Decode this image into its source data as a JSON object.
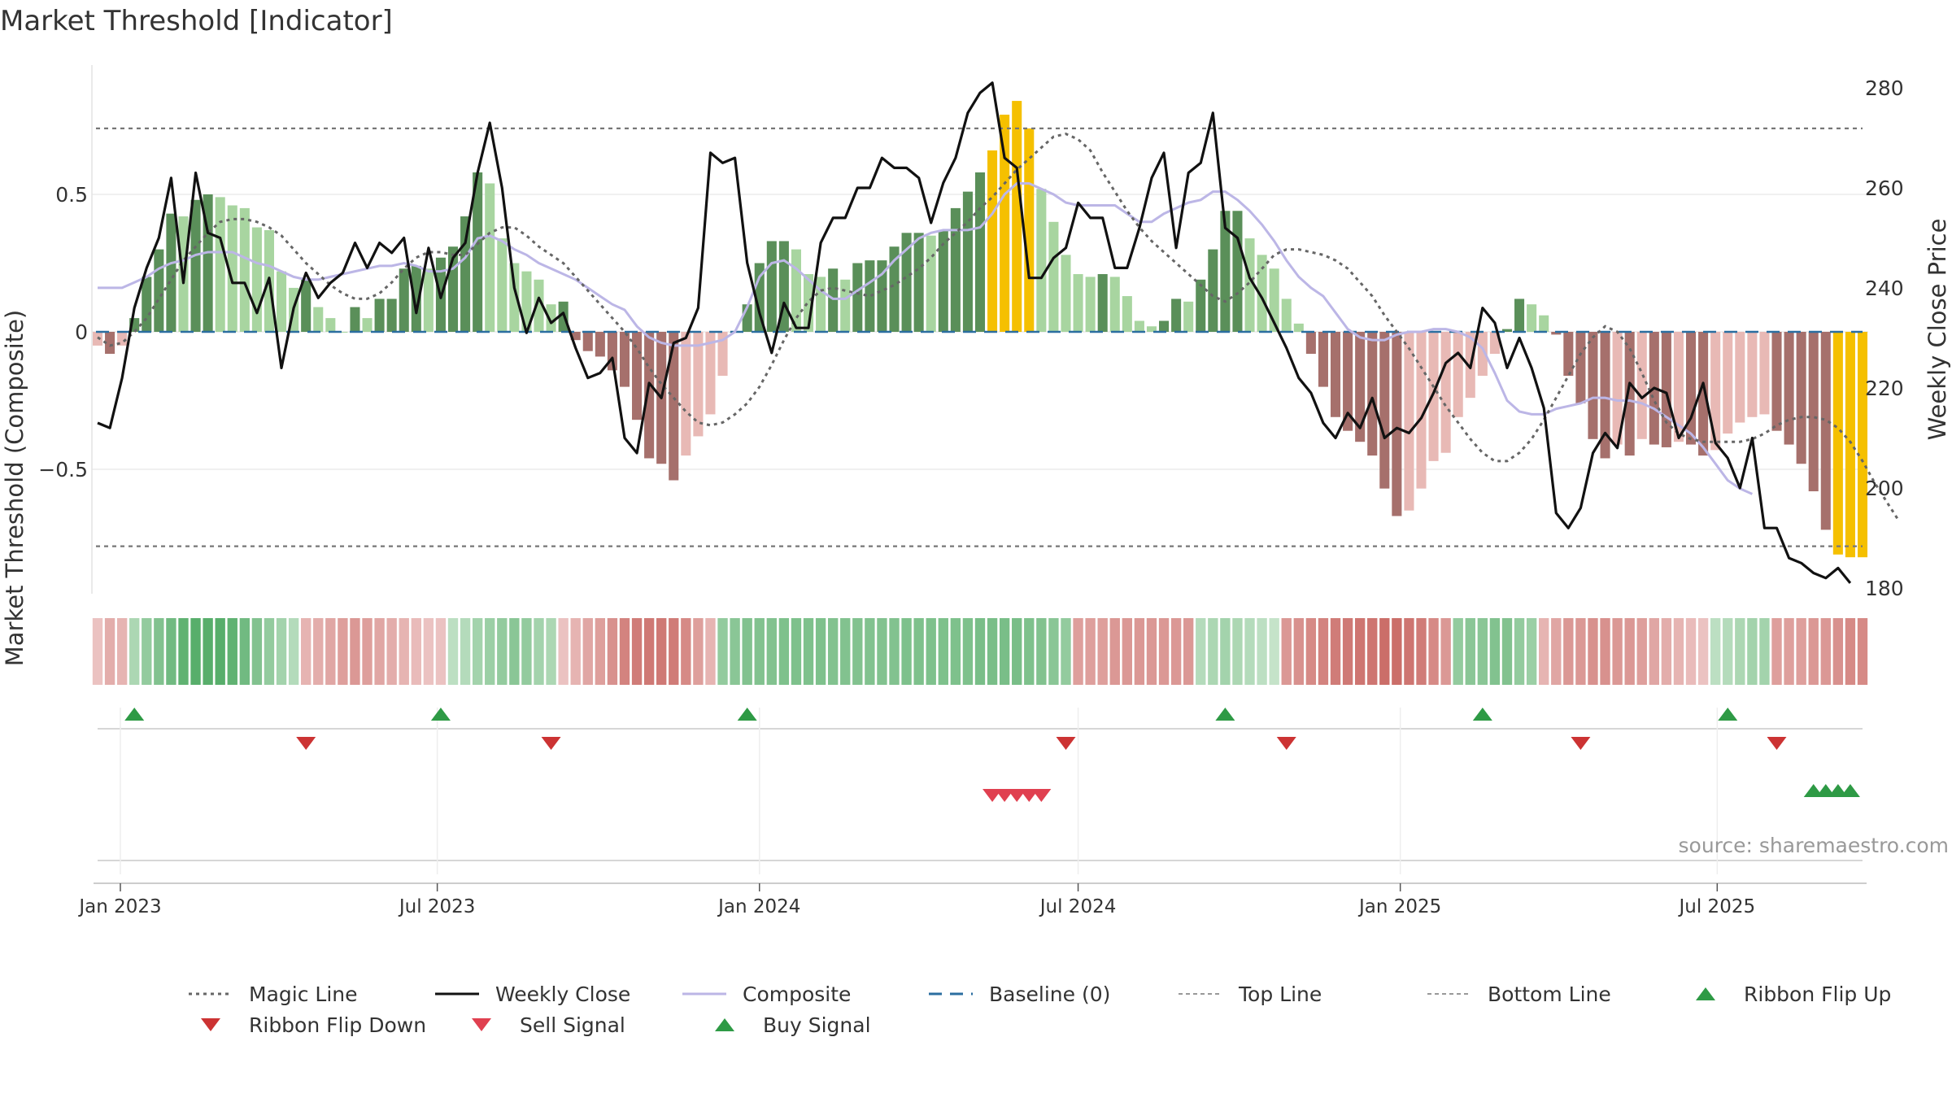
{
  "title": "Market Threshold [Indicator]",
  "source": "source: sharemaestro.com",
  "colors": {
    "bar_pos_strong": "#5a8f59",
    "bar_pos_weak": "#a8d5a0",
    "bar_neg_strong": "#a6706c",
    "bar_neg_weak": "#e8b9b5",
    "highlight": "#f5c000",
    "close": "#111111",
    "composite": "#bcb6e6",
    "magic": "#666666",
    "baseline": "#2b6ea0",
    "threshold": "#777777",
    "buy": "#2e9a45",
    "sell": "#d93a3a",
    "flip_up": "#2e9a45",
    "flip_down": "#cc3333"
  },
  "chart_data": {
    "type": "bar",
    "title": "Market Threshold [Indicator]",
    "ylabel_left": "Market Threshold (Composite)",
    "ylabel_right": "Weekly Close Price",
    "ylim_left": [
      -0.95,
      0.95
    ],
    "ylim_right": [
      180,
      280
    ],
    "yticks_left": [
      {
        "value": 0.5,
        "label": "0.5"
      },
      {
        "value": 0,
        "label": "0"
      },
      {
        "value": -0.5,
        "label": "−0.5"
      }
    ],
    "yticks_right": [
      280,
      260,
      240,
      220,
      200,
      180
    ],
    "top_line": 0.74,
    "bottom_line": -0.78,
    "x_start": "2022-12-19",
    "x_step_days": 7,
    "xticks": [
      {
        "date": "2023-01-01",
        "label": "Jan 2023"
      },
      {
        "date": "2023-07-01",
        "label": "Jul 2023"
      },
      {
        "date": "2024-01-01",
        "label": "Jan 2024"
      },
      {
        "date": "2024-07-01",
        "label": "Jul 2024"
      },
      {
        "date": "2025-01-01",
        "label": "Jan 2025"
      },
      {
        "date": "2025-07-01",
        "label": "Jul 2025"
      }
    ],
    "series": [
      {
        "name": "Magic Line",
        "values": [
          -0.02,
          -0.05,
          -0.04,
          0.0,
          0.05,
          0.12,
          0.19,
          0.26,
          0.31,
          0.36,
          0.4,
          0.41,
          0.41,
          0.4,
          0.38,
          0.35,
          0.3,
          0.25,
          0.21,
          0.17,
          0.14,
          0.12,
          0.12,
          0.14,
          0.18,
          0.23,
          0.27,
          0.29,
          0.29,
          0.28,
          0.28,
          0.32,
          0.36,
          0.38,
          0.38,
          0.35,
          0.31,
          0.28,
          0.25,
          0.2,
          0.15,
          0.1,
          0.05,
          0.0,
          -0.06,
          -0.13,
          -0.19,
          -0.24,
          -0.29,
          -0.33,
          -0.34,
          -0.33,
          -0.3,
          -0.26,
          -0.2,
          -0.12,
          -0.03,
          0.05,
          0.11,
          0.15,
          0.16,
          0.15,
          0.14,
          0.13,
          0.15,
          0.17,
          0.2,
          0.23,
          0.27,
          0.32,
          0.36,
          0.4,
          0.45,
          0.49,
          0.54,
          0.59,
          0.63,
          0.67,
          0.71,
          0.72,
          0.7,
          0.66,
          0.58,
          0.51,
          0.44,
          0.38,
          0.33,
          0.29,
          0.25,
          0.21,
          0.17,
          0.13,
          0.11,
          0.14,
          0.18,
          0.23,
          0.28,
          0.3,
          0.3,
          0.29,
          0.28,
          0.26,
          0.23,
          0.18,
          0.13,
          0.06,
          0.0,
          -0.06,
          -0.13,
          -0.2,
          -0.27,
          -0.33,
          -0.39,
          -0.44,
          -0.47,
          -0.47,
          -0.44,
          -0.39,
          -0.32,
          -0.24,
          -0.16,
          -0.08,
          -0.02,
          0.02,
          0.0,
          -0.06,
          -0.15,
          -0.25,
          -0.33,
          -0.37,
          -0.39,
          -0.4,
          -0.4,
          -0.4,
          -0.4,
          -0.39,
          -0.37,
          -0.34,
          -0.32,
          -0.31,
          -0.31,
          -0.32,
          -0.35,
          -0.4,
          -0.47,
          -0.55,
          -0.62,
          -0.69
        ]
      },
      {
        "name": "Weekly Close",
        "values": [
          213,
          212,
          222,
          236,
          244,
          250,
          262,
          241,
          263,
          251,
          250,
          241,
          241,
          235,
          242,
          224,
          236,
          243,
          238,
          241,
          243,
          249,
          244,
          249,
          247,
          250,
          235,
          248,
          238,
          246,
          249,
          263,
          273,
          260,
          240,
          231,
          238,
          233,
          235,
          228,
          222,
          223,
          226,
          210,
          207,
          221,
          218,
          229,
          230,
          236,
          267,
          265,
          266,
          245,
          235,
          227,
          237,
          232,
          232,
          249,
          254,
          254,
          260,
          260,
          266,
          264,
          264,
          262,
          253,
          261,
          266,
          275,
          279,
          281,
          266,
          264,
          242,
          242,
          246,
          248,
          257,
          254,
          254,
          244,
          244,
          252,
          262,
          267,
          248,
          263,
          265,
          275,
          252,
          250,
          242,
          238,
          233,
          228,
          222,
          219,
          213,
          210,
          215,
          212,
          218,
          210,
          212,
          211,
          214,
          219,
          225,
          227,
          224,
          236,
          233,
          224,
          230,
          224,
          216,
          195,
          192,
          196,
          207,
          211,
          208,
          221,
          218,
          220,
          219,
          210,
          214,
          221,
          209,
          206,
          200,
          210,
          192,
          192,
          186,
          185,
          183,
          182,
          184,
          181
        ]
      },
      {
        "name": "Composite",
        "values": [
          0.16,
          0.16,
          0.16,
          0.18,
          0.2,
          0.23,
          0.25,
          0.26,
          0.28,
          0.29,
          0.29,
          0.29,
          0.27,
          0.25,
          0.24,
          0.22,
          0.2,
          0.19,
          0.19,
          0.2,
          0.21,
          0.22,
          0.23,
          0.24,
          0.24,
          0.25,
          0.24,
          0.22,
          0.22,
          0.23,
          0.27,
          0.34,
          0.35,
          0.33,
          0.3,
          0.28,
          0.25,
          0.23,
          0.21,
          0.19,
          0.16,
          0.13,
          0.1,
          0.08,
          0.02,
          -0.02,
          -0.04,
          -0.05,
          -0.05,
          -0.05,
          -0.04,
          -0.03,
          0.0,
          0.09,
          0.2,
          0.25,
          0.26,
          0.23,
          0.19,
          0.15,
          0.12,
          0.12,
          0.15,
          0.18,
          0.21,
          0.26,
          0.3,
          0.34,
          0.36,
          0.37,
          0.37,
          0.37,
          0.38,
          0.43,
          0.5,
          0.54,
          0.54,
          0.52,
          0.5,
          0.47,
          0.46,
          0.46,
          0.46,
          0.46,
          0.43,
          0.4,
          0.4,
          0.43,
          0.45,
          0.47,
          0.48,
          0.51,
          0.51,
          0.48,
          0.44,
          0.39,
          0.33,
          0.26,
          0.2,
          0.16,
          0.13,
          0.07,
          0.01,
          -0.02,
          -0.03,
          -0.03,
          -0.01,
          0.0,
          0.0,
          0.01,
          0.01,
          0.0,
          -0.02,
          -0.06,
          -0.15,
          -0.25,
          -0.29,
          -0.3,
          -0.3,
          -0.28,
          -0.27,
          -0.26,
          -0.24,
          -0.24,
          -0.25,
          -0.25,
          -0.26,
          -0.28,
          -0.31,
          -0.34,
          -0.37,
          -0.42,
          -0.48,
          -0.54,
          -0.57,
          -0.59
        ]
      },
      {
        "name": "Composite Bars",
        "values": [
          -0.05,
          -0.08,
          -0.05,
          0.05,
          0.2,
          0.3,
          0.43,
          0.42,
          0.48,
          0.5,
          0.49,
          0.46,
          0.45,
          0.38,
          0.37,
          0.22,
          0.16,
          0.19,
          0.09,
          0.05,
          0.0,
          0.09,
          0.05,
          0.12,
          0.12,
          0.23,
          0.24,
          0.23,
          0.27,
          0.31,
          0.42,
          0.58,
          0.54,
          0.34,
          0.25,
          0.22,
          0.19,
          0.1,
          0.11,
          -0.03,
          -0.07,
          -0.09,
          -0.14,
          -0.2,
          -0.32,
          -0.46,
          -0.48,
          -0.54,
          -0.45,
          -0.38,
          -0.3,
          -0.16,
          0.0,
          0.1,
          0.25,
          0.33,
          0.33,
          0.3,
          0.21,
          0.2,
          0.23,
          0.19,
          0.25,
          0.26,
          0.26,
          0.31,
          0.36,
          0.36,
          0.35,
          0.37,
          0.45,
          0.51,
          0.58,
          0.66,
          0.79,
          0.84,
          0.74,
          0.52,
          0.4,
          0.28,
          0.21,
          0.2,
          0.21,
          0.2,
          0.13,
          0.04,
          0.02,
          0.04,
          0.12,
          0.11,
          0.19,
          0.3,
          0.44,
          0.44,
          0.34,
          0.28,
          0.23,
          0.12,
          0.03,
          -0.08,
          -0.2,
          -0.31,
          -0.36,
          -0.4,
          -0.45,
          -0.57,
          -0.67,
          -0.65,
          -0.57,
          -0.47,
          -0.44,
          -0.31,
          -0.24,
          -0.16,
          -0.08,
          0.01,
          0.12,
          0.1,
          0.06,
          -0.01,
          -0.16,
          -0.26,
          -0.39,
          -0.46,
          -0.41,
          -0.45,
          -0.39,
          -0.41,
          -0.42,
          -0.4,
          -0.41,
          -0.45,
          -0.43,
          -0.37,
          -0.33,
          -0.31,
          -0.3,
          -0.36,
          -0.41,
          -0.48,
          -0.58,
          -0.72,
          -0.81,
          -0.82,
          -0.82
        ]
      }
    ],
    "highlighted_bar_ranges": [
      [
        73,
        76
      ],
      [
        142,
        145
      ]
    ],
    "ribbon": [
      -0.2,
      -0.35,
      -0.3,
      0.35,
      0.5,
      0.6,
      0.7,
      0.8,
      0.85,
      0.85,
      0.85,
      0.8,
      0.7,
      0.6,
      0.5,
      0.4,
      0.3,
      -0.3,
      -0.35,
      -0.4,
      -0.45,
      -0.5,
      -0.45,
      -0.4,
      -0.35,
      -0.3,
      -0.25,
      -0.2,
      -0.2,
      0.25,
      0.3,
      0.4,
      0.45,
      0.5,
      0.55,
      0.5,
      0.4,
      0.35,
      -0.2,
      -0.3,
      -0.4,
      -0.45,
      -0.55,
      -0.65,
      -0.7,
      -0.72,
      -0.72,
      -0.7,
      -0.6,
      -0.45,
      -0.3,
      0.5,
      0.55,
      0.6,
      0.6,
      0.6,
      0.62,
      0.62,
      0.62,
      0.62,
      0.6,
      0.6,
      0.6,
      0.6,
      0.6,
      0.6,
      0.62,
      0.62,
      0.62,
      0.62,
      0.62,
      0.62,
      0.65,
      0.65,
      0.65,
      0.65,
      0.62,
      0.6,
      0.55,
      0.5,
      -0.45,
      -0.45,
      -0.45,
      -0.5,
      -0.5,
      -0.5,
      -0.5,
      -0.5,
      -0.5,
      -0.5,
      0.3,
      0.35,
      0.4,
      0.35,
      0.3,
      0.25,
      0.2,
      -0.5,
      -0.55,
      -0.6,
      -0.65,
      -0.7,
      -0.72,
      -0.75,
      -0.75,
      -0.8,
      -0.8,
      -0.75,
      -0.7,
      -0.6,
      -0.5,
      0.5,
      0.55,
      0.55,
      0.6,
      0.6,
      0.5,
      0.45,
      -0.3,
      -0.4,
      -0.5,
      -0.5,
      -0.55,
      -0.55,
      -0.5,
      -0.5,
      -0.45,
      -0.4,
      -0.35,
      -0.3,
      -0.25,
      -0.2,
      0.25,
      0.3,
      0.35,
      0.4,
      0.4,
      -0.45,
      -0.45,
      -0.45,
      -0.5,
      -0.5,
      -0.55,
      -0.6,
      -0.6
    ],
    "ribbon_flip_up": [
      3,
      28,
      53,
      92,
      113,
      133
    ],
    "ribbon_flip_down": [
      17,
      37,
      79,
      97,
      121,
      137
    ],
    "sell_signals": [
      73,
      74,
      75,
      76,
      77
    ],
    "buy_signals": [
      140,
      141,
      142,
      143
    ],
    "legend": {
      "position": "bottom",
      "entries": [
        {
          "label": "Magic Line",
          "style": "dotted",
          "color": "#666666"
        },
        {
          "label": "Weekly Close",
          "style": "solid",
          "color": "#111111"
        },
        {
          "label": "Composite",
          "style": "solid",
          "color": "#bcb6e6"
        },
        {
          "label": "Baseline (0)",
          "style": "dashed",
          "color": "#2b6ea0"
        },
        {
          "label": "Top Line",
          "style": "dashed-thin",
          "color": "#999999"
        },
        {
          "label": "Bottom Line",
          "style": "dashed-thin",
          "color": "#999999"
        },
        {
          "label": "Ribbon Flip Up",
          "style": "triangle-up",
          "color": "#2e9a45"
        },
        {
          "label": "Ribbon Flip Down",
          "style": "triangle-down",
          "color": "#cc3333"
        },
        {
          "label": "Sell Signal",
          "style": "triangle-down",
          "color": "#e04050"
        },
        {
          "label": "Buy Signal",
          "style": "triangle-up",
          "color": "#2e9a45"
        }
      ]
    }
  }
}
